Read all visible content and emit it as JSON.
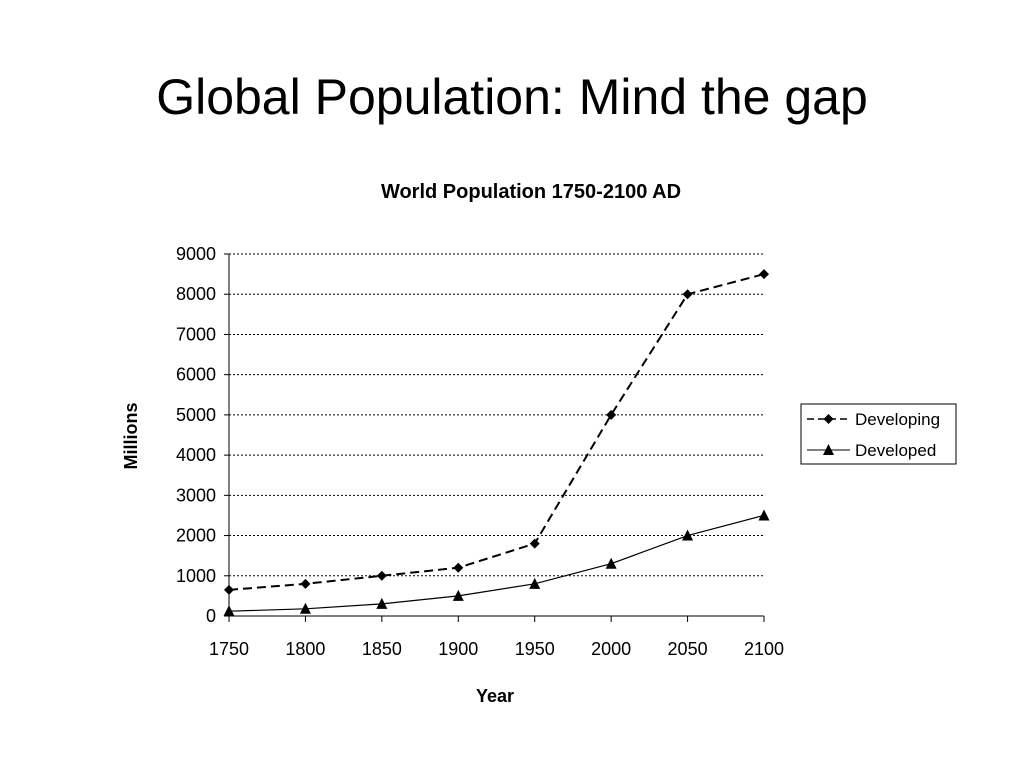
{
  "slide": {
    "title": "Global Population: Mind the gap"
  },
  "chart_data": {
    "type": "line",
    "title": "World Population 1750-2100 AD",
    "xlabel": "Year",
    "ylabel": "Millions",
    "x": [
      1750,
      1800,
      1850,
      1900,
      1950,
      2000,
      2050,
      2100
    ],
    "ylim": [
      0,
      9000
    ],
    "yticks": [
      0,
      1000,
      2000,
      3000,
      4000,
      5000,
      6000,
      7000,
      8000,
      9000
    ],
    "grid": true,
    "legend_position": "right",
    "series": [
      {
        "name": "Developing",
        "values": [
          650,
          800,
          1000,
          1200,
          1800,
          5000,
          8000,
          8500
        ],
        "line_style": "dashed",
        "marker": "diamond",
        "color": "#000000"
      },
      {
        "name": "Developed",
        "values": [
          120,
          180,
          300,
          500,
          800,
          1300,
          2000,
          2500
        ],
        "line_style": "solid",
        "marker": "triangle",
        "color": "#000000"
      }
    ]
  }
}
